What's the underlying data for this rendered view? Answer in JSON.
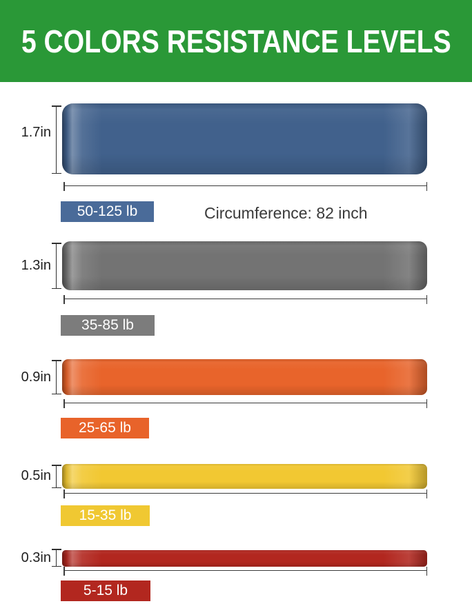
{
  "header": {
    "title": "5 COLORS RESISTANCE LEVELS",
    "bg_color": "#2a9837",
    "text_color": "#ffffff"
  },
  "circumference_note": "Circumference: 82 inch",
  "bands": [
    {
      "color_name": "blue",
      "width_label": "1.7in",
      "resistance_label": "50-125 lb",
      "band_color": "#41618c",
      "badge_color": "#4a6b99"
    },
    {
      "color_name": "gray",
      "width_label": "1.3in",
      "resistance_label": "35-85 lb",
      "band_color": "#737373",
      "badge_color": "#7c7c7c"
    },
    {
      "color_name": "orange",
      "width_label": "0.9in",
      "resistance_label": "25-65 lb",
      "band_color": "#e8642b",
      "badge_color": "#e8632a"
    },
    {
      "color_name": "yellow",
      "width_label": "0.5in",
      "resistance_label": "15-35 lb",
      "band_color": "#f2c832",
      "badge_color": "#f0c832"
    },
    {
      "color_name": "red",
      "width_label": "0.3in",
      "resistance_label": "5-15 lb",
      "band_color": "#b2271f",
      "badge_color": "#b2271f"
    }
  ]
}
